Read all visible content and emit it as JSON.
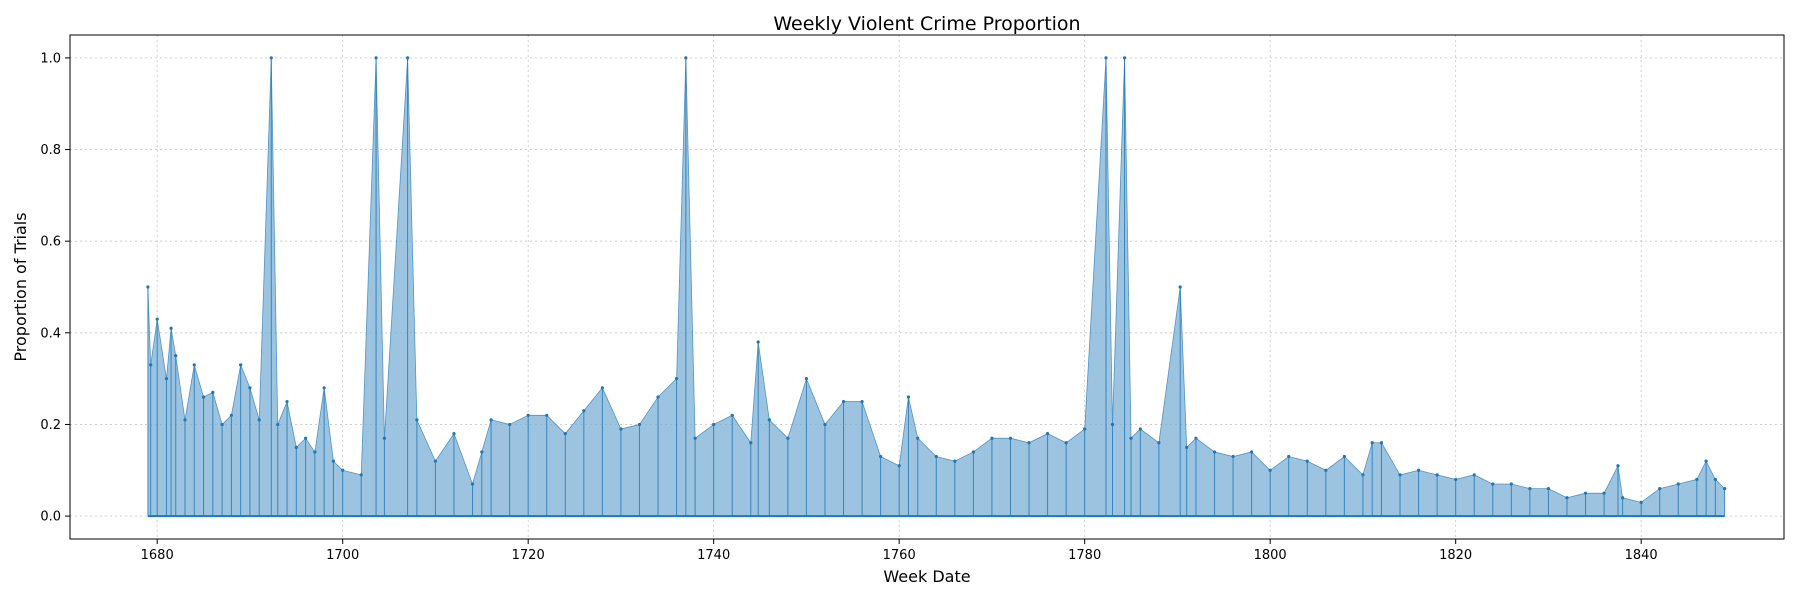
{
  "chart_data": {
    "type": "line",
    "title": "Weekly Violent Crime Proportion",
    "xlabel": "Week Date",
    "ylabel": "Proportion of Trials",
    "xlim": [
      1670.6,
      1855.4
    ],
    "ylim": [
      -0.05,
      1.05
    ],
    "x_ticks": [
      "1680",
      "1700",
      "1720",
      "1740",
      "1760",
      "1780",
      "1800",
      "1820",
      "1840"
    ],
    "y_ticks": [
      "0.0",
      "0.2",
      "0.4",
      "0.6",
      "0.8",
      "1.0"
    ],
    "grid": true,
    "color": "#1f77b4",
    "fill_color": "#7bafd4",
    "series": [
      {
        "x": [
          1679.0,
          1679.3,
          1680.0,
          1681.0,
          1681.5,
          1682.0,
          1683.0,
          1684.0,
          1685.0,
          1686.0,
          1687.0,
          1688.0,
          1689.0,
          1690.0,
          1691.0,
          1692.3,
          1693.0,
          1694.0,
          1695.0,
          1696.0,
          1697.0,
          1698.0,
          1699.0,
          1700.0,
          1702.0,
          1703.6,
          1704.5,
          1707.0,
          1708.0,
          1710.0,
          1712.0,
          1714.0,
          1715.0,
          1716.0,
          1718.0,
          1720.0,
          1722.0,
          1724.0,
          1726.0,
          1728.0,
          1730.0,
          1732.0,
          1734.0,
          1736.0,
          1737.0,
          1738.0,
          1740.0,
          1742.0,
          1744.0,
          1744.8,
          1746.0,
          1748.0,
          1750.0,
          1752.0,
          1754.0,
          1756.0,
          1758.0,
          1760.0,
          1761.0,
          1762.0,
          1764.0,
          1766.0,
          1768.0,
          1770.0,
          1772.0,
          1774.0,
          1776.0,
          1778.0,
          1780.0,
          1782.3,
          1783.0,
          1784.3,
          1785.0,
          1786.0,
          1788.0,
          1790.3,
          1791.0,
          1792.0,
          1794.0,
          1796.0,
          1798.0,
          1800.0,
          1802.0,
          1804.0,
          1806.0,
          1808.0,
          1810.0,
          1811.0,
          1812.0,
          1814.0,
          1816.0,
          1818.0,
          1820.0,
          1822.0,
          1824.0,
          1826.0,
          1828.0,
          1830.0,
          1832.0,
          1834.0,
          1836.0,
          1837.5,
          1838.0,
          1840.0,
          1842.0,
          1844.0,
          1846.0,
          1847.0,
          1848.0,
          1849.0
        ],
        "y": [
          0.5,
          0.33,
          0.43,
          0.3,
          0.41,
          0.35,
          0.21,
          0.33,
          0.26,
          0.27,
          0.2,
          0.22,
          0.33,
          0.28,
          0.21,
          1.0,
          0.2,
          0.25,
          0.15,
          0.17,
          0.14,
          0.28,
          0.12,
          0.1,
          0.09,
          1.0,
          0.17,
          1.0,
          0.21,
          0.12,
          0.18,
          0.07,
          0.14,
          0.21,
          0.2,
          0.22,
          0.22,
          0.18,
          0.23,
          0.28,
          0.19,
          0.2,
          0.26,
          0.3,
          1.0,
          0.17,
          0.2,
          0.22,
          0.16,
          0.38,
          0.21,
          0.17,
          0.3,
          0.2,
          0.25,
          0.25,
          0.13,
          0.11,
          0.26,
          0.17,
          0.13,
          0.12,
          0.14,
          0.17,
          0.17,
          0.16,
          0.18,
          0.16,
          0.19,
          1.0,
          0.2,
          1.0,
          0.17,
          0.19,
          0.16,
          0.5,
          0.15,
          0.17,
          0.14,
          0.13,
          0.14,
          0.1,
          0.13,
          0.12,
          0.1,
          0.13,
          0.09,
          0.16,
          0.16,
          0.09,
          0.1,
          0.09,
          0.08,
          0.09,
          0.07,
          0.07,
          0.06,
          0.06,
          0.04,
          0.05,
          0.05,
          0.11,
          0.04,
          0.03,
          0.06,
          0.07,
          0.08,
          0.12,
          0.08,
          0.06
        ]
      }
    ]
  }
}
